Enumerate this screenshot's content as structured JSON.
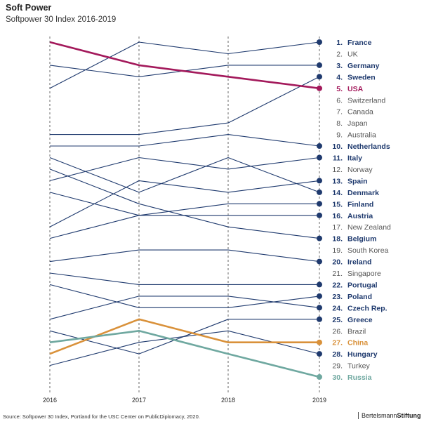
{
  "header": {
    "title": "Soft Power",
    "subtitle": "Softpower 30 Index 2016-2019"
  },
  "footer": {
    "source": "Source: Softpower 30 Index, Portland for the USC Center on PublicDiplomacy, 2020.",
    "brand_light": "Bertelsmann",
    "brand_bold": "Stiftung"
  },
  "colors": {
    "eu": "#1f3a6e",
    "non_eu": "#555555",
    "usa": "#a3195b",
    "china": "#d9913a",
    "russia": "#6fa8a0",
    "guide": "#444444"
  },
  "chart_data": {
    "type": "line",
    "subtype": "bump",
    "title": "Soft Power",
    "subtitle": "Softpower 30 Index 2016-2019",
    "x": [
      "2016",
      "2017",
      "2018",
      "2019"
    ],
    "yrange": [
      1,
      30
    ],
    "y_inverted": true,
    "gridlines": "dashed vertical at each year",
    "series": [
      {
        "name": "France",
        "rank_label": "1.",
        "ranks": [
          5,
          1,
          2,
          1
        ],
        "group": "eu"
      },
      {
        "name": "UK",
        "rank_label": "2.",
        "ranks": null,
        "group": "none"
      },
      {
        "name": "Germany",
        "rank_label": "3.",
        "ranks": [
          3,
          4,
          3,
          3
        ],
        "group": "eu"
      },
      {
        "name": "Sweden",
        "rank_label": "4.",
        "ranks": [
          9,
          9,
          8,
          4
        ],
        "group": "eu"
      },
      {
        "name": "USA",
        "rank_label": "5.",
        "ranks": [
          1,
          3,
          4,
          5
        ],
        "group": "usa"
      },
      {
        "name": "Switzerland",
        "rank_label": "6.",
        "ranks": null,
        "group": "none"
      },
      {
        "name": "Canada",
        "rank_label": "7.",
        "ranks": null,
        "group": "none"
      },
      {
        "name": "Japan",
        "rank_label": "8.",
        "ranks": null,
        "group": "none"
      },
      {
        "name": "Australia",
        "rank_label": "9.",
        "ranks": null,
        "group": "none"
      },
      {
        "name": "Netherlands",
        "rank_label": "10.",
        "ranks": [
          10,
          10,
          9,
          10
        ],
        "group": "eu"
      },
      {
        "name": "Italy",
        "rank_label": "11.",
        "ranks": [
          13,
          11,
          12,
          11
        ],
        "group": "eu"
      },
      {
        "name": "Norway",
        "rank_label": "12.",
        "ranks": null,
        "group": "none"
      },
      {
        "name": "Spain",
        "rank_label": "13.",
        "ranks": [
          17,
          13,
          14,
          13
        ],
        "group": "eu"
      },
      {
        "name": "Denmark",
        "rank_label": "14.",
        "ranks": [
          11,
          14,
          11,
          14
        ],
        "group": "eu"
      },
      {
        "name": "Finland",
        "rank_label": "15.",
        "ranks": [
          14,
          16,
          15,
          15
        ],
        "group": "eu"
      },
      {
        "name": "Austria",
        "rank_label": "16.",
        "ranks": [
          18,
          16,
          16,
          16
        ],
        "group": "eu"
      },
      {
        "name": "New Zealand",
        "rank_label": "17.",
        "ranks": null,
        "group": "none"
      },
      {
        "name": "Belgium",
        "rank_label": "18.",
        "ranks": [
          12,
          15,
          17,
          18
        ],
        "group": "eu"
      },
      {
        "name": "South Korea",
        "rank_label": "19.",
        "ranks": null,
        "group": "none"
      },
      {
        "name": "Ireland",
        "rank_label": "20.",
        "ranks": [
          20,
          19,
          19,
          20
        ],
        "group": "eu"
      },
      {
        "name": "Singapore",
        "rank_label": "21.",
        "ranks": null,
        "group": "none"
      },
      {
        "name": "Portugal",
        "rank_label": "22.",
        "ranks": [
          21,
          22,
          22,
          22
        ],
        "group": "eu"
      },
      {
        "name": "Poland",
        "rank_label": "23.",
        "ranks": [
          22,
          24,
          24,
          23
        ],
        "group": "eu"
      },
      {
        "name": "Czech Rep.",
        "rank_label": "24.",
        "ranks": [
          25,
          23,
          23,
          24
        ],
        "group": "eu"
      },
      {
        "name": "Greece",
        "rank_label": "25.",
        "ranks": [
          26,
          28,
          25,
          25
        ],
        "group": "eu"
      },
      {
        "name": "Brazil",
        "rank_label": "26.",
        "ranks": null,
        "group": "none"
      },
      {
        "name": "China",
        "rank_label": "27.",
        "ranks": [
          28,
          25,
          27,
          27
        ],
        "group": "china"
      },
      {
        "name": "Hungary",
        "rank_label": "28.",
        "ranks": [
          29,
          27,
          26,
          28
        ],
        "group": "eu"
      },
      {
        "name": "Turkey",
        "rank_label": "29.",
        "ranks": null,
        "group": "none"
      },
      {
        "name": "Russia",
        "rank_label": "30.",
        "ranks": [
          27,
          26,
          28,
          30
        ],
        "group": "russia"
      }
    ]
  }
}
